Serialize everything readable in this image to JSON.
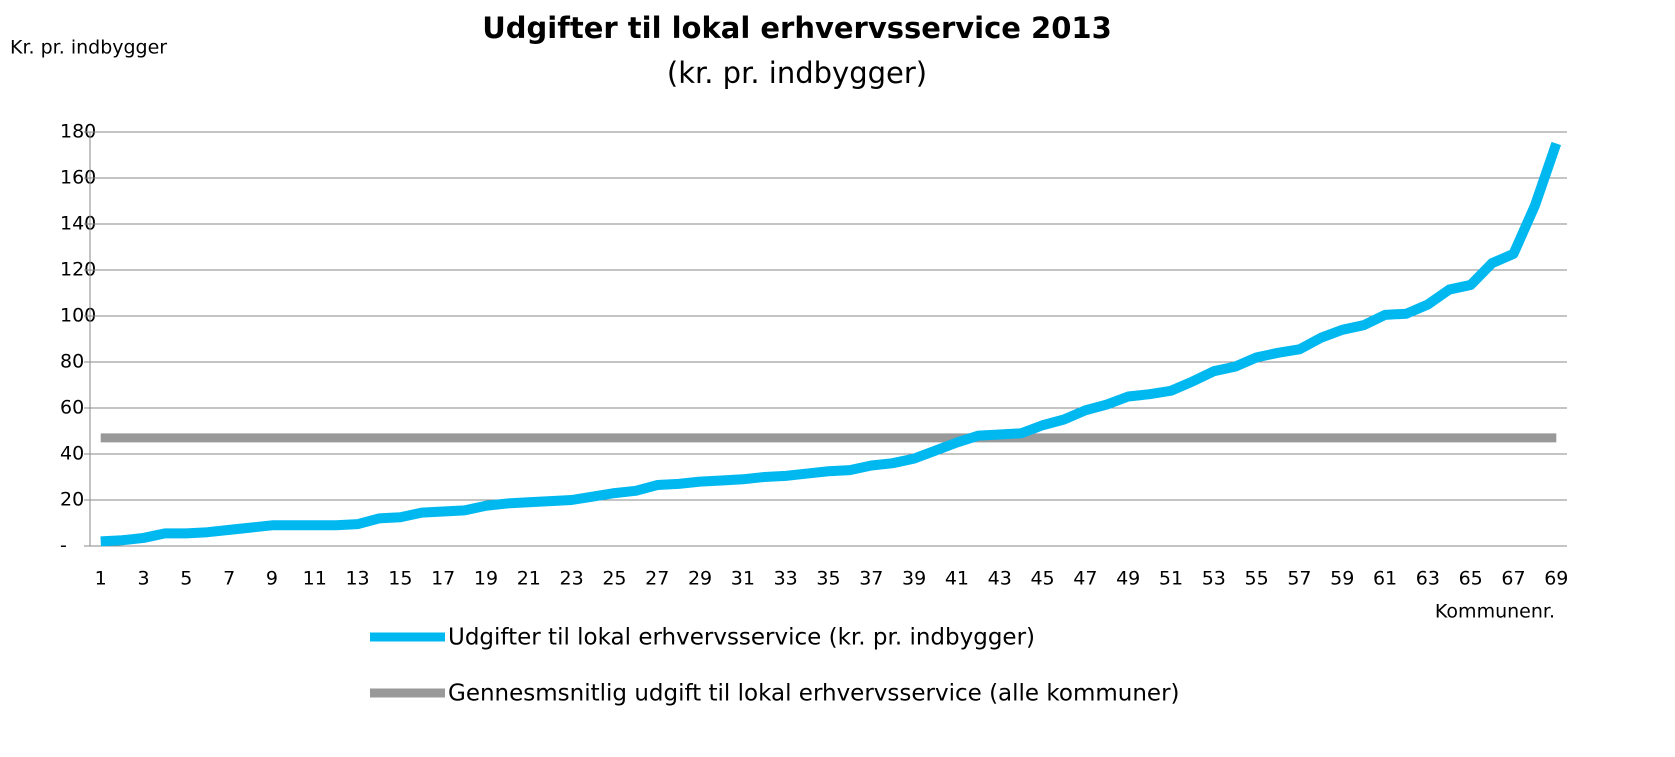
{
  "chart_data": {
    "type": "line",
    "title": "Udgifter til lokal erhvervsservice 2013",
    "subtitle": "(kr. pr. indbygger)",
    "y_label": "Kr. pr. indbygger",
    "x_label": "Kommunenr.",
    "categories": [
      1,
      null,
      3,
      null,
      5,
      null,
      7,
      null,
      9,
      null,
      11,
      null,
      13,
      null,
      15,
      null,
      17,
      null,
      19,
      null,
      21,
      null,
      23,
      null,
      25,
      null,
      27,
      null,
      29,
      null,
      31,
      null,
      33,
      null,
      35,
      null,
      37,
      null,
      39,
      null,
      41,
      null,
      43,
      null,
      45,
      null,
      47,
      null,
      49,
      null,
      51,
      null,
      53,
      null,
      55,
      null,
      57,
      null,
      59,
      null,
      61,
      null,
      63,
      null,
      65,
      null,
      67,
      null,
      69
    ],
    "series": [
      {
        "name": "Udgifter til lokal erhvervsservice (kr. pr. indbygger)",
        "color": "#00b8f0",
        "values": [
          2,
          2.5,
          3.5,
          5.5,
          5.5,
          6,
          7,
          8,
          9,
          9,
          9,
          9,
          9.5,
          12,
          12.5,
          14.5,
          15,
          15.5,
          17.5,
          18.5,
          19,
          19.5,
          20,
          21.5,
          23,
          24,
          26.5,
          27,
          28,
          28.5,
          29,
          30,
          30.5,
          31.5,
          32.5,
          33,
          35,
          36,
          38,
          41.5,
          45,
          48,
          48.5,
          49,
          52.5,
          55,
          59,
          61.5,
          65,
          66,
          67.5,
          71.5,
          76,
          78,
          82,
          84,
          85.5,
          90.5,
          94,
          96,
          100.5,
          101,
          105,
          111.5,
          113.5,
          123,
          127,
          148,
          175
        ]
      },
      {
        "name": "Gennesmsnitlig udgift til lokal erhvervsservice (alle kommuner)",
        "color": "#999999",
        "values": [
          47,
          47,
          47,
          47,
          47,
          47,
          47,
          47,
          47,
          47,
          47,
          47,
          47,
          47,
          47,
          47,
          47,
          47,
          47,
          47,
          47,
          47,
          47,
          47,
          47,
          47,
          47,
          47,
          47,
          47,
          47,
          47,
          47,
          47,
          47,
          47,
          47,
          47,
          47,
          47,
          47,
          47,
          47,
          47,
          47,
          47,
          47,
          47,
          47,
          47,
          47,
          47,
          47,
          47,
          47,
          47,
          47,
          47,
          47,
          47,
          47,
          47,
          47,
          47,
          47,
          47,
          47,
          47,
          47
        ]
      }
    ],
    "ylim": [
      0,
      180
    ],
    "yticks": [
      {
        "value": 0,
        "label": "-"
      },
      20,
      40,
      60,
      80,
      100,
      120,
      140,
      160,
      180
    ],
    "grid": true
  }
}
